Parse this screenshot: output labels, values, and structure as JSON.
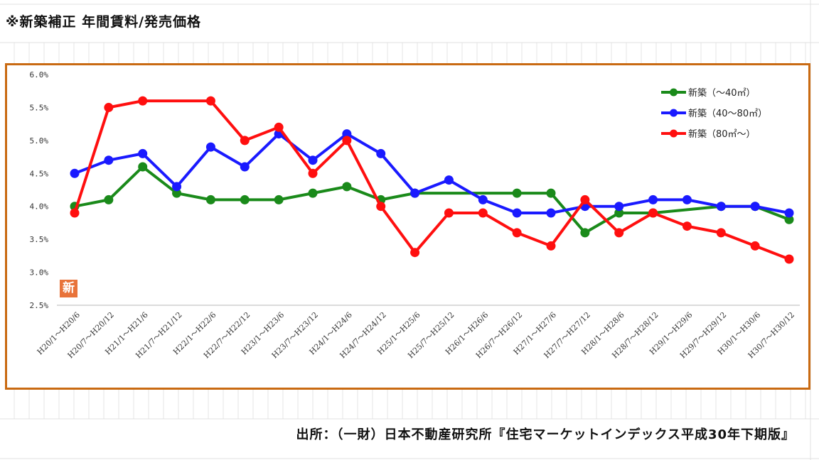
{
  "header": {
    "title": "※新築補正 年間賃料/発売価格"
  },
  "footer": {
    "source": "出所：（一財）日本不動産研究所『住宅マーケットインデックス平成30年下期版』"
  },
  "badge": {
    "label": "新",
    "color": "#e8733a"
  },
  "colors": {
    "frame": "#c96a12"
  },
  "chart_data": {
    "type": "line",
    "title": "",
    "xlabel": "",
    "ylabel": "",
    "ylim": [
      2.5,
      6.0
    ],
    "yticks": [
      "6.0%",
      "5.5%",
      "5.0%",
      "4.5%",
      "4.0%",
      "3.5%",
      "3.0%",
      "2.5%"
    ],
    "ytick_values": [
      6.0,
      5.5,
      5.0,
      4.5,
      4.0,
      3.5,
      3.0,
      2.5
    ],
    "grid": false,
    "legend_position": "top-right",
    "categories": [
      "H20/1～H20/6",
      "H20/7～H20/12",
      "H21/1～H21/6",
      "H21/7～H21/12",
      "H22/1～H22/6",
      "H22/7～H22/12",
      "H23/1～H23/6",
      "H23/7～H23/12",
      "H24/1～H24/6",
      "H24/7～H24/12",
      "H25/1～H25/6",
      "H25/7～H25/12",
      "H26/1～H26/6",
      "H26/7～H26/12",
      "H27/1～H27/6",
      "H27/7～H27/12",
      "H28/1～H28/6",
      "H28/7～H28/12",
      "H29/1～H29/6",
      "H29/7～H29/12",
      "H30/1～H30/6",
      "H30/7～H30/12"
    ],
    "series": [
      {
        "name": "新築（～40㎡）",
        "color": "#1a8a1a",
        "values": [
          4.0,
          4.1,
          4.6,
          4.2,
          4.1,
          4.1,
          4.1,
          4.2,
          4.3,
          4.1,
          4.2,
          null,
          null,
          4.2,
          4.2,
          3.6,
          3.9,
          3.9,
          null,
          4.0,
          4.0,
          3.8
        ]
      },
      {
        "name": "新築（40～80㎡）",
        "color": "#1a1aff",
        "values": [
          4.5,
          4.7,
          4.8,
          4.3,
          4.9,
          4.6,
          5.1,
          4.7,
          5.1,
          4.8,
          4.2,
          4.4,
          4.1,
          3.9,
          3.9,
          4.0,
          4.0,
          4.1,
          4.1,
          4.0,
          4.0,
          3.9
        ]
      },
      {
        "name": "新築（80㎡～）",
        "color": "#ff0f0f",
        "values": [
          3.9,
          5.5,
          5.6,
          null,
          5.6,
          5.0,
          5.2,
          4.5,
          5.0,
          4.0,
          3.3,
          3.9,
          3.9,
          3.6,
          3.4,
          4.1,
          3.6,
          3.9,
          3.7,
          3.6,
          3.4,
          3.2
        ]
      }
    ]
  }
}
